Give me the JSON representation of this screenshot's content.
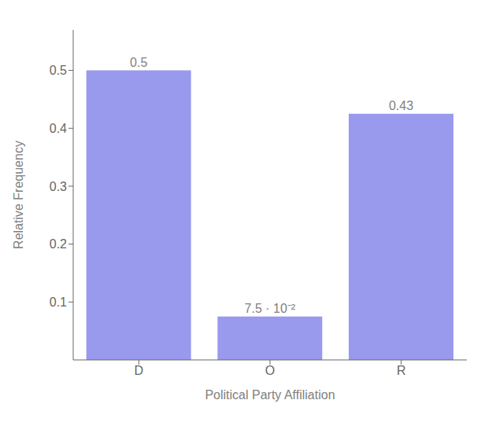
{
  "chart_data": {
    "type": "bar",
    "categories": [
      "D",
      "O",
      "R"
    ],
    "values": [
      0.5,
      0.075,
      0.425
    ],
    "value_labels": [
      "0.5",
      "7.5 · 10⁻²",
      "0.43"
    ],
    "data_labels": true,
    "color": "#9999ee",
    "xlabel": "Political Party Affiliation",
    "ylabel": "Relative Frequency",
    "ylim": [
      0,
      0.57
    ],
    "yticks": [
      0.1,
      0.2,
      0.3,
      0.4,
      0.5
    ],
    "grid": false
  }
}
